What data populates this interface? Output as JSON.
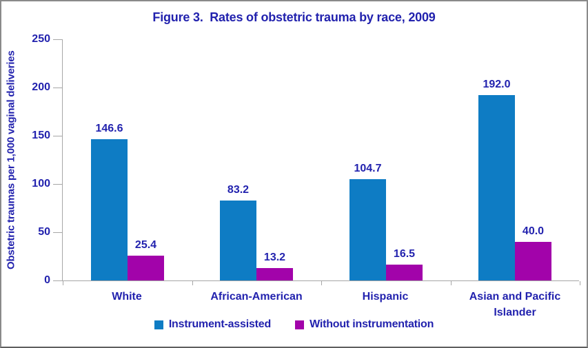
{
  "frame": {
    "background": "#ffffff",
    "border_color": "#8a8a8a"
  },
  "chart_data": {
    "type": "bar",
    "title": "Figure 3.  Rates of obstetric trauma by race, 2009",
    "xlabel": "",
    "ylabel": "Obstetric traumas per 1,000 vaginal deliveries",
    "categories": [
      "White",
      "African-American",
      "Hispanic",
      "Asian and Pacific Islander"
    ],
    "series": [
      {
        "name": "Instrument-assisted",
        "color": "#0e7cc4",
        "values": [
          146.6,
          83.2,
          104.7,
          192.0
        ]
      },
      {
        "name": "Without instrumentation",
        "color": "#a203aa",
        "values": [
          25.4,
          13.2,
          16.5,
          40.0
        ]
      }
    ],
    "value_label_decimals": 1,
    "ylim": [
      0,
      250
    ],
    "ytick_interval": 50,
    "ytick_labels": [
      "0",
      "50",
      "100",
      "150",
      "200",
      "250"
    ],
    "grid": false,
    "legend_position": "bottom",
    "text_color": "#2222ae",
    "axis_color": "#a6a6a6"
  }
}
